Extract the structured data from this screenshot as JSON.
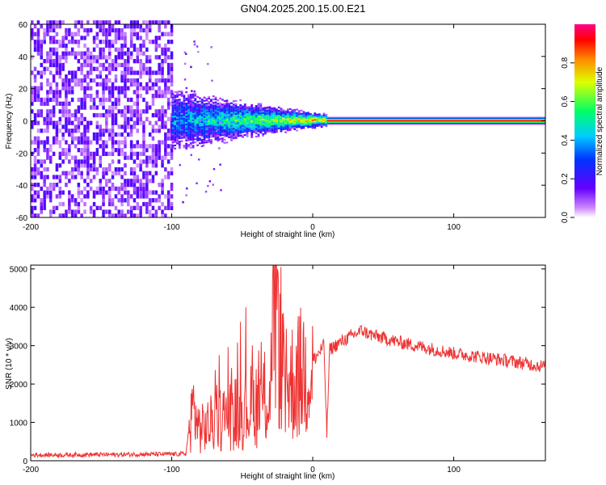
{
  "title": "GN04.2025.200.15.00.E21",
  "colors": {
    "trace": "#ee3333",
    "axis": "#000000",
    "ridge": "#e02020"
  },
  "chart_data": [
    {
      "type": "heatmap",
      "xlabel": "Height of straight line (km)",
      "ylabel": "Frequency (Hz)",
      "xlim": [
        -200,
        165
      ],
      "ylim": [
        -60,
        60
      ],
      "xticks": [
        -200,
        -100,
        0,
        100
      ],
      "yticks": [
        -60,
        -40,
        -20,
        0,
        20,
        40,
        60
      ],
      "grid": false,
      "colorbar": {
        "label": "Normalized spectral amplitude",
        "range": [
          0,
          1
        ],
        "ticks": [
          "0.0",
          "0.2",
          "0.4",
          "0.6",
          "0.8"
        ],
        "colormap": "rainbow"
      },
      "regions": [
        {
          "x_range": [
            -200,
            -100
          ],
          "description_value": 0.15
        },
        {
          "x_range": [
            -100,
            10
          ],
          "center_freq_hz": 0,
          "spread_hz": 12
        },
        {
          "x_range": [
            10,
            165
          ],
          "center_freq_hz": 0,
          "value": 1.0
        }
      ]
    },
    {
      "type": "line",
      "xlabel": "Height of straight line (km)",
      "ylabel": "SNR (10 * v/v)",
      "xlim": [
        -200,
        165
      ],
      "ylim": [
        0,
        5100
      ],
      "xticks": [
        -200,
        -100,
        0,
        100
      ],
      "yticks": [
        0,
        1000,
        2000,
        3000,
        4000,
        5000
      ],
      "grid": false,
      "series": [
        {
          "x": [
            -200,
            -180,
            -160,
            -140,
            -120,
            -100,
            -90,
            -85,
            -80,
            -70,
            -60,
            -50,
            -40,
            -30,
            -27,
            -20,
            -10,
            0,
            8,
            10,
            12,
            20,
            30,
            35,
            40,
            60,
            80,
            100,
            120,
            140,
            165
          ],
          "y": [
            150,
            150,
            160,
            160,
            170,
            170,
            180,
            1400,
            800,
            1000,
            1200,
            1300,
            1500,
            1700,
            4800,
            1900,
            2200,
            2600,
            3000,
            700,
            2900,
            3100,
            3300,
            3400,
            3300,
            3100,
            2950,
            2800,
            2700,
            2600,
            2450
          ]
        }
      ]
    }
  ]
}
